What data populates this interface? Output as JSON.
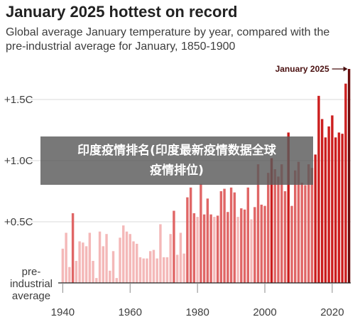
{
  "chart_data": {
    "type": "bar",
    "title": "January 2025 hottest on record",
    "subtitle": "Global average January temperature by year, compared with the pre-industrial average for January, 1850-1900",
    "y_axis": {
      "ylim": [
        0,
        1.75
      ],
      "ticks": [
        {
          "value": 0,
          "label_lines": [
            "pre-",
            "industrial",
            "average"
          ]
        },
        {
          "value": 0.5,
          "label": "+0.5C"
        },
        {
          "value": 1.0,
          "label": "+1.0C"
        },
        {
          "value": 1.5,
          "label": "+1.5C"
        }
      ]
    },
    "x_axis": {
      "xlim": [
        1940,
        2025
      ],
      "ticks": [
        1940,
        1960,
        1980,
        2000,
        2020
      ]
    },
    "grid": "horizontal",
    "annotation": {
      "label": "January 2025",
      "year": 2025
    },
    "color_scale": {
      "low": "#f4b8b8",
      "mid": "#e06666",
      "high": "#cc1e1e",
      "max": "#6b0e0e"
    },
    "x": [
      1940,
      1941,
      1942,
      1943,
      1944,
      1945,
      1946,
      1947,
      1948,
      1949,
      1950,
      1951,
      1952,
      1953,
      1954,
      1955,
      1956,
      1957,
      1958,
      1959,
      1960,
      1961,
      1962,
      1963,
      1964,
      1965,
      1966,
      1967,
      1968,
      1969,
      1970,
      1971,
      1972,
      1973,
      1974,
      1975,
      1976,
      1977,
      1978,
      1979,
      1980,
      1981,
      1982,
      1983,
      1984,
      1985,
      1986,
      1987,
      1988,
      1989,
      1990,
      1991,
      1992,
      1993,
      1994,
      1995,
      1996,
      1997,
      1998,
      1999,
      2000,
      2001,
      2002,
      2003,
      2004,
      2005,
      2006,
      2007,
      2008,
      2009,
      2010,
      2011,
      2012,
      2013,
      2014,
      2015,
      2016,
      2017,
      2018,
      2019,
      2020,
      2021,
      2022,
      2023,
      2024,
      2025
    ],
    "values": [
      0.28,
      0.41,
      0.13,
      0.57,
      0.18,
      0.34,
      0.33,
      0.3,
      0.41,
      0.18,
      0.04,
      0.42,
      0.3,
      0.4,
      0.1,
      0.26,
      0.04,
      0.37,
      0.47,
      0.42,
      0.4,
      0.34,
      0.32,
      0.21,
      0.2,
      0.2,
      0.26,
      0.27,
      0.2,
      0.48,
      0.21,
      0.21,
      0.4,
      0.59,
      0.23,
      0.41,
      0.24,
      0.7,
      0.78,
      0.57,
      0.54,
      0.81,
      0.56,
      0.69,
      0.56,
      0.54,
      0.55,
      0.75,
      0.77,
      0.58,
      0.78,
      0.74,
      0.54,
      0.61,
      0.6,
      0.78,
      0.52,
      0.62,
      0.97,
      0.64,
      0.63,
      0.9,
      1.02,
      0.93,
      0.87,
      0.97,
      0.75,
      1.23,
      0.63,
      0.92,
      0.99,
      0.82,
      0.8,
      0.97,
      0.94,
      1.05,
      1.53,
      1.34,
      1.19,
      1.28,
      1.37,
      1.19,
      1.23,
      1.22,
      1.63,
      1.75
    ]
  },
  "overlay": {
    "line1": "印度疫情排名(印度最新疫情数据全球",
    "line2": "疫情排位)"
  }
}
